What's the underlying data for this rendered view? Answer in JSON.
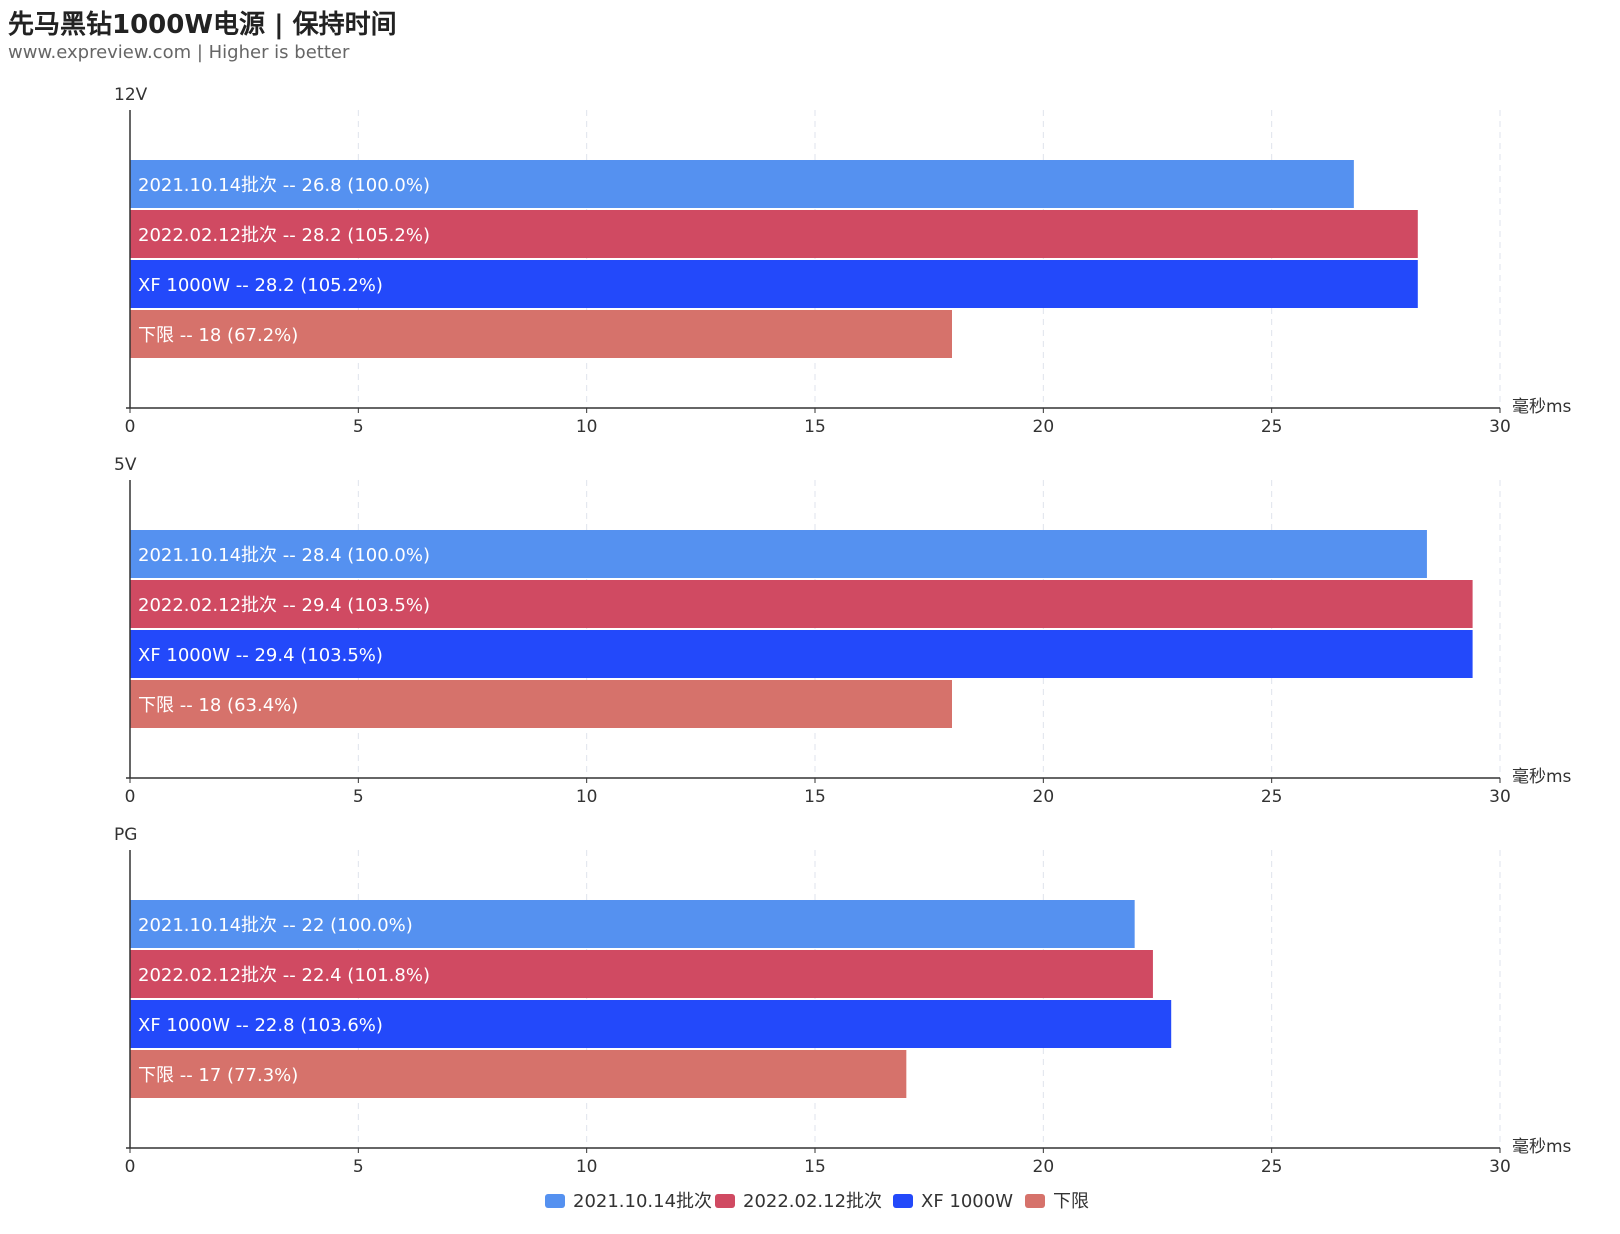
{
  "title": "先马黑钻1000W电源 | 保持时间",
  "subtitle": "www.expreview.com | Higher is better",
  "chart_data": {
    "type": "bar",
    "orientation": "horizontal",
    "xlim": [
      0,
      30
    ],
    "xticks": [
      0,
      5,
      10,
      15,
      20,
      25,
      30
    ],
    "xlabel": "毫秒ms",
    "grid": "vertical-dashed",
    "legend_position": "bottom-center",
    "series": [
      {
        "name": "2021.10.14批次",
        "color": "#5591f0"
      },
      {
        "name": "2022.02.12批次",
        "color": "#d04a62"
      },
      {
        "name": "XF 1000W",
        "color": "#2349fa"
      },
      {
        "name": "下限",
        "color": "#d6726b"
      }
    ],
    "panels": [
      {
        "name": "12V",
        "values": [
          26.8,
          28.2,
          28.2,
          18
        ],
        "labels": [
          "2021.10.14批次  --  26.8 (100.0%)",
          "2022.02.12批次  --  28.2 (105.2%)",
          "XF 1000W  --  28.2 (105.2%)",
          "下限  --  18 (67.2%)"
        ]
      },
      {
        "name": "5V",
        "values": [
          28.4,
          29.4,
          29.4,
          18
        ],
        "labels": [
          "2021.10.14批次  --  28.4 (100.0%)",
          "2022.02.12批次  --  29.4 (103.5%)",
          "XF 1000W  --  29.4 (103.5%)",
          "下限  --  18 (63.4%)"
        ]
      },
      {
        "name": "PG",
        "values": [
          22,
          22.4,
          22.8,
          17
        ],
        "labels": [
          "2021.10.14批次  --  22 (100.0%)",
          "2022.02.12批次  --  22.4 (101.8%)",
          "XF 1000W  --  22.8 (103.6%)",
          "下限  --  17 (77.3%)"
        ]
      }
    ]
  }
}
